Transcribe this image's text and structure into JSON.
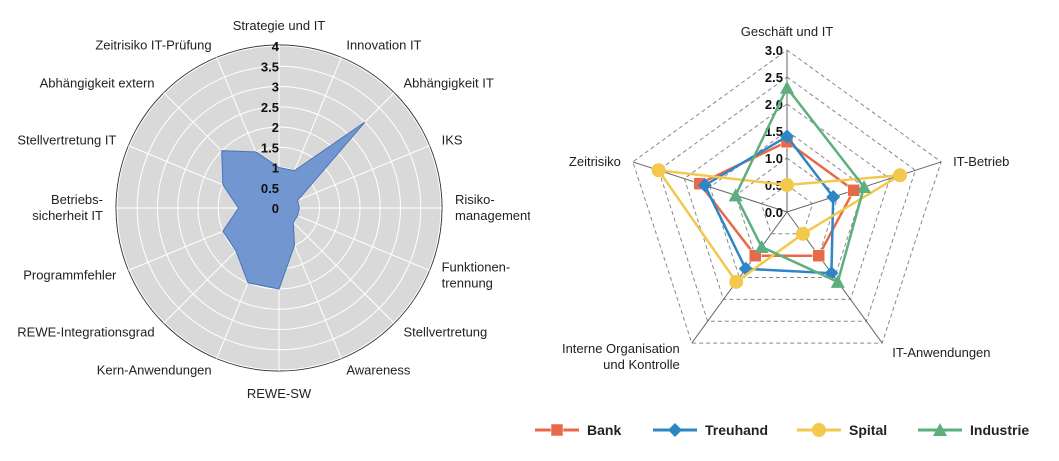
{
  "chart_data": [
    {
      "type": "radar",
      "axes": [
        "Strategie und IT",
        "Innovation IT",
        "Abhängigkeit IT",
        "IKS",
        "Risiko-\nmanagement",
        "Funktionen-\ntrennung",
        "Stellvertretung",
        "Awareness",
        "REWE-SW",
        "Kern-Anwendungen",
        "REWE-Integrationsgrad",
        "Programmfehler",
        "Betriebs-\nsicherheit IT",
        "Stellvertretung IT",
        "Abhängigkeit extern",
        "Zeitrisiko IT-Prüfung"
      ],
      "radial_ticks": [
        "0",
        "0.5",
        "1",
        "1.5",
        "2",
        "2.5",
        "3",
        "3.5",
        "4"
      ],
      "rmax": 4,
      "series": [
        {
          "values": [
            1.0,
            1.0,
            3.0,
            0.5,
            0.5,
            0.5,
            0.5,
            1.0,
            2.0,
            2.0,
            1.5,
            1.5,
            1.0,
            1.5,
            2.0,
            1.5
          ]
        }
      ],
      "colors": {
        "fill": "#7296cf",
        "stroke": "#4a74b8",
        "background": "#d9d9d9",
        "grid": "#ffffff"
      }
    },
    {
      "type": "radar",
      "axes": [
        "Geschäft und IT",
        "IT-Betrieb",
        "IT-Anwendungen",
        "Interne Organisation\nund Kontrolle",
        "Zeitrisiko"
      ],
      "radial_ticks": [
        "0.0",
        "0.5",
        "1.0",
        "1.5",
        "2.0",
        "2.5",
        "3.0"
      ],
      "rmax": 3,
      "series": [
        {
          "name": "Bank",
          "color": "#e8694a",
          "marker": "square",
          "values": [
            1.3,
            1.3,
            1.0,
            1.0,
            1.7
          ]
        },
        {
          "name": "Treuhand",
          "color": "#2f86c6",
          "marker": "diamond",
          "values": [
            1.4,
            0.9,
            1.4,
            1.3,
            1.6
          ]
        },
        {
          "name": "Spital",
          "color": "#f2c94c",
          "marker": "circle",
          "values": [
            0.5,
            2.2,
            0.5,
            1.6,
            2.5
          ]
        },
        {
          "name": "Industrie",
          "color": "#5fae7f",
          "marker": "triangle",
          "values": [
            2.3,
            1.5,
            1.6,
            0.8,
            1.0
          ]
        }
      ]
    }
  ]
}
